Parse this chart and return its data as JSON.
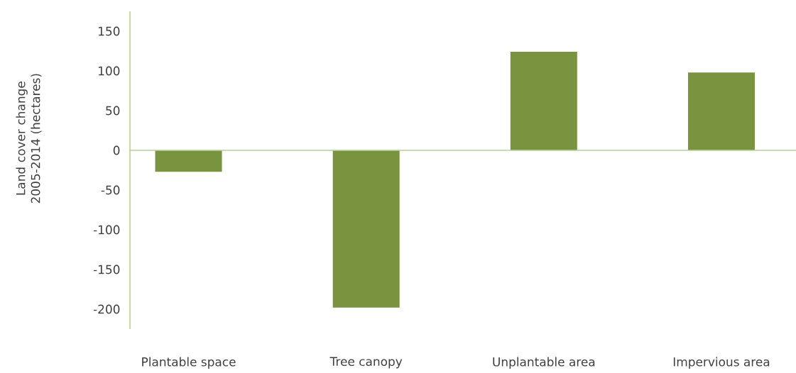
{
  "chart_data": {
    "type": "bar",
    "ylabel": "Land cover change 2005-2014 (hectares)",
    "categories": [
      "Plantable space",
      "Tree canopy",
      "Unplantable area",
      "Impervious area"
    ],
    "values": [
      -27,
      -198,
      124,
      98
    ],
    "color": "#79933f",
    "ref_lines": [
      {
        "axis": "y",
        "value": 0,
        "color": "#b5d19b"
      }
    ],
    "ylim": [
      -225,
      175
    ],
    "yticks": [
      -200,
      -150,
      -100,
      -50,
      0,
      50,
      100,
      150
    ]
  }
}
